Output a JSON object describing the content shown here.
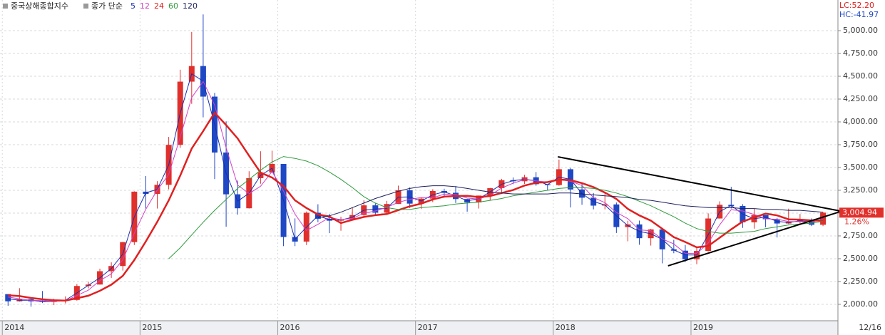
{
  "chart_data": {
    "type": "candlestick",
    "title": "중국상해종합지수",
    "legend_prefix": "종가 단순",
    "categories": [
      "2014",
      null,
      null,
      null,
      null,
      null,
      null,
      null,
      null,
      null,
      null,
      null,
      "2015",
      null,
      null,
      null,
      null,
      null,
      null,
      null,
      null,
      null,
      null,
      null,
      "2016",
      null,
      null,
      null,
      null,
      null,
      null,
      null,
      null,
      null,
      null,
      null,
      "2017",
      null,
      null,
      null,
      null,
      null,
      null,
      null,
      null,
      null,
      null,
      null,
      "2018",
      null,
      null,
      null,
      null,
      null,
      null,
      null,
      null,
      null,
      null,
      null,
      "2019",
      null,
      null,
      null,
      null,
      null,
      null,
      null,
      null,
      null,
      null,
      null
    ],
    "open": [
      2112,
      2033,
      2056,
      2033,
      2026,
      2039,
      2048,
      2201,
      2217,
      2363,
      2420,
      2682,
      3235,
      3210,
      3310,
      3748,
      4441,
      4612,
      4277,
      3664,
      3206,
      3053,
      3383,
      3445,
      3539,
      2738,
      2688,
      3004,
      2938,
      2917,
      2930,
      2979,
      3085,
      3005,
      3100,
      3250,
      3104,
      3159,
      3242,
      3223,
      3154,
      3117,
      3192,
      3273,
      3361,
      3349,
      3393,
      3317,
      3307,
      3481,
      3259,
      3169,
      3082,
      3095,
      2847,
      2876,
      2725,
      2821,
      2603,
      2588,
      2494,
      2585,
      2941,
      3091,
      3078,
      2899,
      2979,
      2933,
      2886,
      2905,
      2929,
      2872
    ],
    "high": [
      2113,
      2177,
      2060,
      2146,
      2062,
      2087,
      2222,
      2248,
      2391,
      2460,
      2684,
      3239,
      3406,
      3350,
      3835,
      4572,
      4986,
      5178,
      4318,
      4006,
      3357,
      3459,
      3678,
      3684,
      3539,
      2942,
      3018,
      3097,
      2992,
      2960,
      3060,
      3140,
      3105,
      3134,
      3301,
      3282,
      3174,
      3261,
      3267,
      3295,
      3157,
      3192,
      3276,
      3376,
      3391,
      3420,
      3450,
      3315,
      3587,
      3495,
      3335,
      3220,
      3219,
      3116,
      2916,
      2918,
      2827,
      2838,
      2707,
      2651,
      2630,
      2997,
      3129,
      3288,
      3098,
      3050,
      2980,
      2947,
      3049,
      2990,
      2942,
      3010
    ],
    "low": [
      1984,
      2030,
      1974,
      2014,
      1991,
      2010,
      2040,
      2175,
      2217,
      2290,
      2370,
      2650,
      3050,
      3050,
      3260,
      3715,
      4198,
      4050,
      3373,
      2850,
      2983,
      3050,
      3322,
      3470,
      2638,
      2638,
      2650,
      2900,
      2780,
      2807,
      2940,
      2970,
      2969,
      3000,
      3100,
      3056,
      3045,
      3120,
      3170,
      3111,
      3016,
      3050,
      3142,
      3210,
      3317,
      3320,
      3300,
      3250,
      3300,
      3062,
      3091,
      3041,
      3041,
      2782,
      2691,
      2653,
      2644,
      2449,
      2560,
      2463,
      2440,
      2580,
      2940,
      3050,
      2838,
      2830,
      2844,
      2733,
      2880,
      2874,
      2858,
      2857
    ],
    "close": [
      2033,
      2056,
      2033,
      2026,
      2039,
      2048,
      2201,
      2217,
      2363,
      2420,
      2682,
      3235,
      3210,
      3310,
      3748,
      4441,
      4612,
      4277,
      3664,
      3206,
      3053,
      3383,
      3445,
      3539,
      2738,
      2688,
      3004,
      2938,
      2917,
      2930,
      2979,
      3085,
      3005,
      3100,
      3250,
      3104,
      3159,
      3242,
      3223,
      3154,
      3117,
      3192,
      3273,
      3361,
      3349,
      3393,
      3317,
      3307,
      3481,
      3259,
      3169,
      3082,
      3095,
      2847,
      2876,
      2725,
      2821,
      2603,
      2588,
      2494,
      2585,
      2941,
      3091,
      3078,
      2899,
      2979,
      2933,
      2886,
      2905,
      2929,
      2872,
      3005
    ],
    "up_color": "#e0302c",
    "down_color": "#1f48c4",
    "series": [
      {
        "name": "5",
        "color": "#1a2fb0",
        "width": 1,
        "values": [
          2060,
          2045,
          2045,
          2030,
          2032,
          2044,
          2125,
          2209,
          2290,
          2392,
          2551,
          2958,
          3222,
          3260,
          3529,
          4095,
          4527,
          4445,
          3970,
          3435,
          3130,
          3218,
          3414,
          3492,
          3139,
          2713,
          2846,
          2971,
          2928,
          2924,
          2955,
          3032,
          3045,
          3053,
          3175,
          3177,
          3132,
          3201,
          3233,
          3189,
          3136,
          3155,
          3233,
          3317,
          3355,
          3371,
          3355,
          3312,
          3394,
          3370,
          3214,
          3126,
          3089,
          2971,
          2862,
          2800,
          2773,
          2712,
          2596,
          2541,
          2540,
          2763,
          3016,
          3085,
          2989,
          2939,
          2956,
          2910,
          2896,
          2917,
          2901,
          2939
        ]
      },
      {
        "name": "12",
        "color": "#d43fc8",
        "width": 1,
        "values": [
          2080,
          2060,
          2045,
          2040,
          2033,
          2038,
          2096,
          2155,
          2260,
          2333,
          2488,
          2779,
          3042,
          3252,
          3423,
          3833,
          4267,
          4443,
          4184,
          3716,
          3308,
          3214,
          3294,
          3456,
          3241,
          2988,
          2810,
          2877,
          2953,
          2928,
          2942,
          2998,
          3023,
          3063,
          3118,
          3151,
          3171,
          3168,
          3208,
          3206,
          3165,
          3154,
          3194,
          3275,
          3328,
          3368,
          3353,
          3339,
          3368,
          3349,
          3303,
          3170,
          3115,
          3008,
          2939,
          2816,
          2807,
          2716,
          2662,
          2559,
          2556,
          2673,
          2872,
          3037,
          3023,
          2985,
          2937,
          2933,
          2908,
          2907,
          2902,
          2935
        ]
      },
      {
        "name": "24",
        "color": "#e02020",
        "width": 2.5,
        "values": [
          2100,
          2090,
          2070,
          2055,
          2045,
          2040,
          2067,
          2094,
          2148,
          2215,
          2312,
          2485,
          2688,
          2904,
          3140,
          3411,
          3707,
          3899,
          4100,
          3965,
          3819,
          3628,
          3444,
          3390,
          3295,
          3140,
          3055,
          2985,
          2962,
          2891,
          2926,
          2958,
          2977,
          2990,
          3033,
          3074,
          3104,
          3150,
          3180,
          3187,
          3190,
          3176,
          3187,
          3220,
          3253,
          3302,
          3333,
          3340,
          3368,
          3361,
          3329,
          3285,
          3225,
          3155,
          3046,
          2975,
          2918,
          2828,
          2737,
          2683,
          2625,
          2640,
          2730,
          2822,
          2908,
          2951,
          2995,
          2975,
          2932,
          2929,
          2919,
          2917
        ]
      },
      {
        "name": "60",
        "color": "#2e9a3c",
        "width": 1,
        "values": [
          null,
          null,
          null,
          null,
          null,
          null,
          null,
          null,
          null,
          null,
          null,
          null,
          null,
          null,
          2500,
          2620,
          2760,
          2900,
          3030,
          3150,
          3270,
          3370,
          3470,
          3560,
          3620,
          3600,
          3570,
          3520,
          3450,
          3370,
          3280,
          3180,
          3110,
          3060,
          3040,
          3040,
          3060,
          3070,
          3080,
          3100,
          3110,
          3120,
          3140,
          3160,
          3190,
          3210,
          3230,
          3250,
          3270,
          3280,
          3280,
          3270,
          3250,
          3220,
          3180,
          3130,
          3080,
          3020,
          2960,
          2890,
          2830,
          2800,
          2780,
          2780,
          2790,
          2800,
          2830,
          2850,
          2870,
          2880,
          2890,
          2910
        ]
      },
      {
        "name": "120",
        "color": "#1c1f5e",
        "width": 1,
        "values": [
          null,
          null,
          null,
          null,
          null,
          null,
          null,
          null,
          null,
          null,
          null,
          null,
          null,
          null,
          null,
          null,
          null,
          null,
          null,
          null,
          null,
          null,
          null,
          null,
          null,
          null,
          null,
          2950,
          2970,
          3010,
          3060,
          3110,
          3160,
          3200,
          3240,
          3270,
          3290,
          3300,
          3300,
          3290,
          3270,
          3250,
          3230,
          3220,
          3210,
          3210,
          3210,
          3210,
          3220,
          3220,
          3210,
          3200,
          3190,
          3180,
          3170,
          3150,
          3140,
          3120,
          3100,
          3080,
          3070,
          3060,
          3060,
          3060,
          3050,
          3050,
          3040,
          3040,
          3030,
          3030,
          3020,
          3010
        ]
      }
    ],
    "trendlines": [
      {
        "color": "#000000",
        "x": [
          47.9,
          72.5
        ],
        "y": [
          3617,
          3023
        ]
      },
      {
        "color": "#000000",
        "x": [
          57.5,
          72.5
        ],
        "y": [
          2422,
          3016
        ]
      }
    ],
    "xlim": [
      -0.7,
      72.3
    ],
    "ylim": [
      1820,
      5336
    ],
    "yticks": [
      {
        "value": 2000,
        "label": "2,000.00"
      },
      {
        "value": 2250,
        "label": "2,250.00"
      },
      {
        "value": 2500,
        "label": "2,500.00"
      },
      {
        "value": 2750,
        "label": "2,750.00"
      },
      {
        "value": 3000,
        "label": "3,000.00"
      },
      {
        "value": 3250,
        "label": "3,250.00"
      },
      {
        "value": 3500,
        "label": "3,500.00"
      },
      {
        "value": 3750,
        "label": "3,750.00"
      },
      {
        "value": 4000,
        "label": "4,000.00"
      },
      {
        "value": 4250,
        "label": "4,250.00"
      },
      {
        "value": 4500,
        "label": "4,500.00"
      },
      {
        "value": 4750,
        "label": "4,750.00"
      },
      {
        "value": 5000,
        "label": "5,000.00"
      }
    ],
    "grid": true,
    "date_label": "12/16",
    "lc_label": "LC:52.20",
    "hc_label": "HC:-41.97",
    "last_price": {
      "value": 3004.94,
      "label": "3,004.94"
    },
    "change_label": "1.26%"
  }
}
